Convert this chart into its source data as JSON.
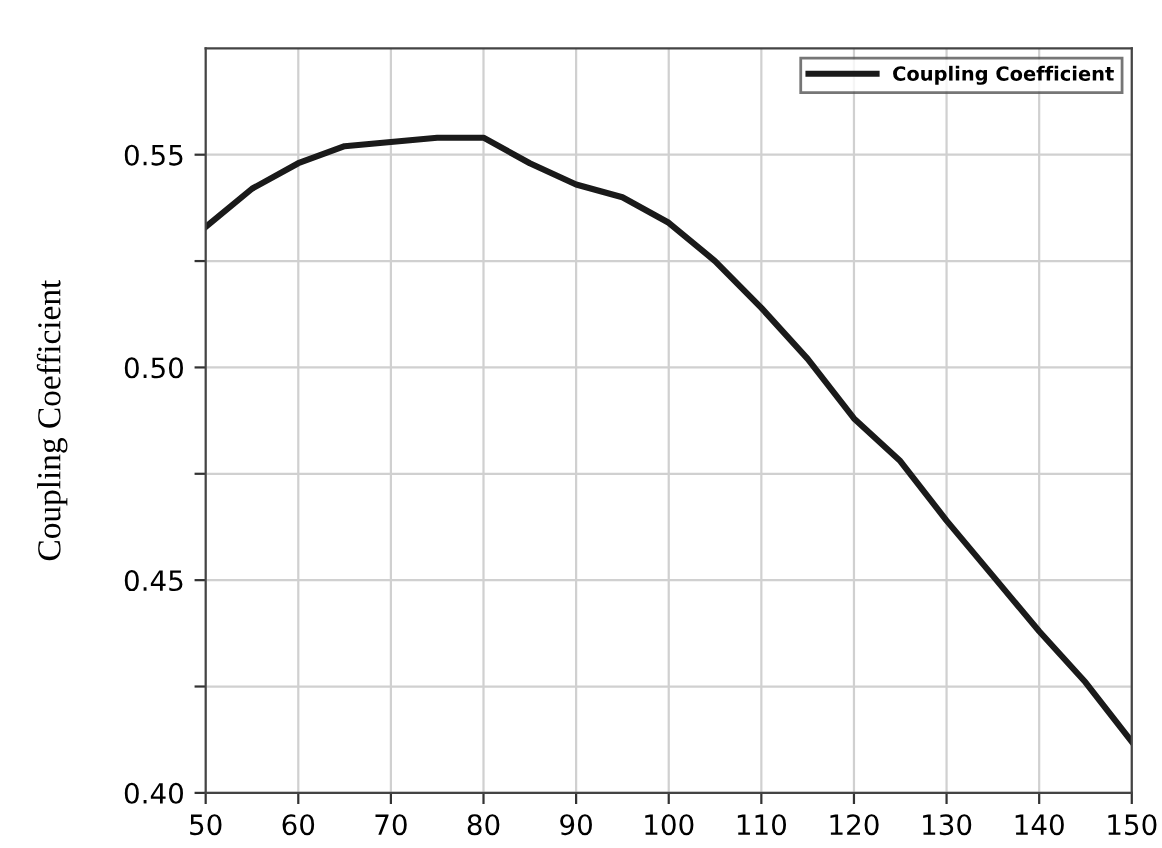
{
  "chart_data": {
    "type": "line",
    "ylabel": "Coupling Coefficient",
    "x": [
      50,
      55,
      60,
      65,
      70,
      75,
      80,
      85,
      90,
      95,
      100,
      105,
      110,
      115,
      120,
      125,
      130,
      135,
      140,
      145,
      150
    ],
    "series": [
      {
        "name": "Coupling Coefficient",
        "color": "#1a1a1a",
        "values": [
          0.533,
          0.542,
          0.548,
          0.552,
          0.553,
          0.554,
          0.554,
          0.548,
          0.543,
          0.54,
          0.534,
          0.525,
          0.514,
          0.502,
          0.488,
          0.478,
          0.464,
          0.451,
          0.438,
          0.426,
          0.412
        ]
      }
    ],
    "xlim": [
      50,
      150
    ],
    "xticks": [
      50,
      60,
      70,
      80,
      90,
      100,
      110,
      120,
      130,
      140,
      150
    ],
    "ylim": [
      0.4,
      0.575
    ],
    "yticks": [
      {
        "value": 0.4,
        "label": "0.40"
      },
      {
        "value": 0.425,
        "label": null
      },
      {
        "value": 0.45,
        "label": "0.45"
      },
      {
        "value": 0.475,
        "label": null
      },
      {
        "value": 0.5,
        "label": "0.50"
      },
      {
        "value": 0.525,
        "label": null
      },
      {
        "value": 0.55,
        "label": "0.55"
      }
    ],
    "grid": true,
    "legend": "top right",
    "marker": "none",
    "line_style": "solid"
  }
}
